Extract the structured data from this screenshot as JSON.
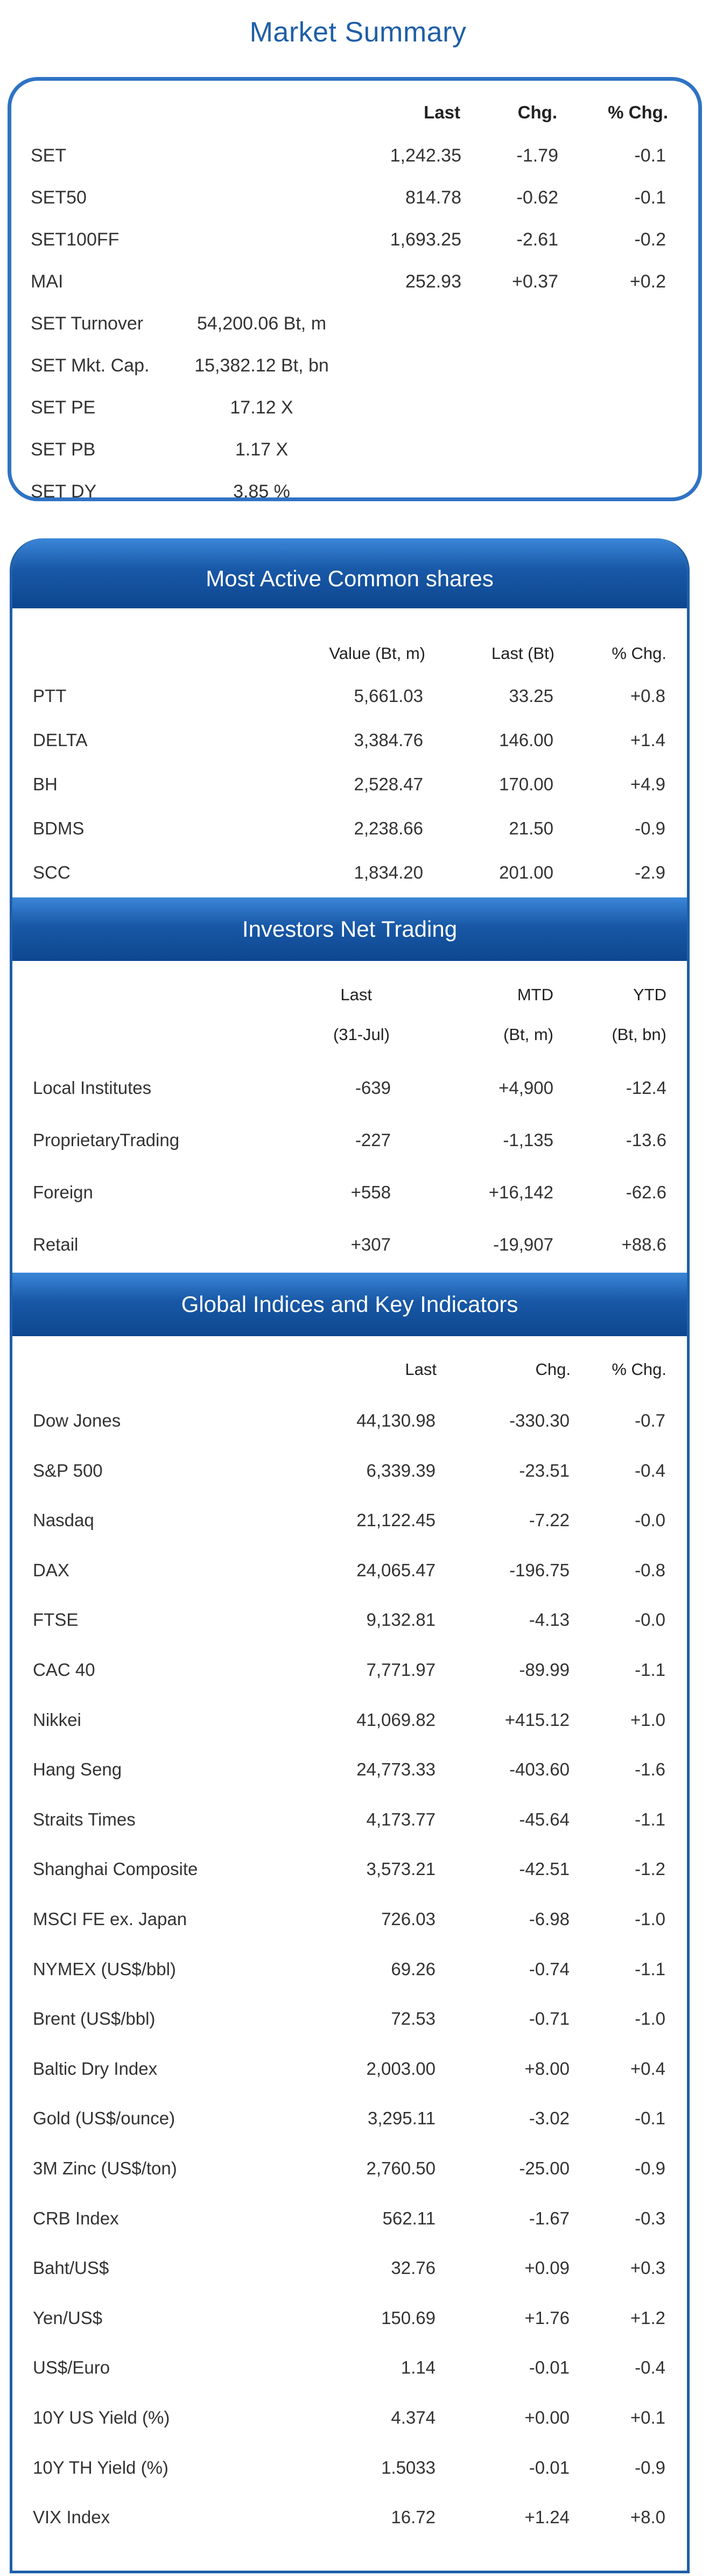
{
  "market_summary": {
    "title": "Market Summary",
    "headers": {
      "last": "Last",
      "chg": "Chg.",
      "pct": "% Chg."
    },
    "rows": [
      {
        "name": "SET",
        "last": "1,242.35",
        "chg": "-1.79",
        "pct": "-0.1"
      },
      {
        "name": "SET50",
        "last": "814.78",
        "chg": "-0.62",
        "pct": "-0.1"
      },
      {
        "name": "SET100FF",
        "last": "1,693.25",
        "chg": "-2.61",
        "pct": "-0.2"
      },
      {
        "name": "MAI",
        "last": "252.93",
        "chg": "+0.37",
        "pct": "+0.2"
      }
    ],
    "extra_rows": [
      {
        "name": "SET  Turnover",
        "value": "54,200.06 Bt, m"
      },
      {
        "name": "SET  Mkt. Cap.",
        "value": "15,382.12 Bt, bn"
      },
      {
        "name": "SET  PE",
        "value": "17.12 X"
      },
      {
        "name": "SET  PB",
        "value": "1.17 X"
      },
      {
        "name": "SET  DY",
        "value": "3.85 %"
      }
    ]
  },
  "most_active": {
    "title": "Most Active Common shares",
    "headers": {
      "value": "Value (Bt, m)",
      "last": "Last (Bt)",
      "pct": "% Chg."
    },
    "rows": [
      {
        "name": "PTT",
        "value": "5,661.03",
        "last": "33.25",
        "pct": "+0.8"
      },
      {
        "name": "DELTA",
        "value": "3,384.76",
        "last": "146.00",
        "pct": "+1.4"
      },
      {
        "name": "BH",
        "value": "2,528.47",
        "last": "170.00",
        "pct": "+4.9"
      },
      {
        "name": "BDMS",
        "value": "2,238.66",
        "last": "21.50",
        "pct": "-0.9"
      },
      {
        "name": "SCC",
        "value": "1,834.20",
        "last": "201.00",
        "pct": "-2.9"
      }
    ]
  },
  "investors": {
    "title": "Investors Net Trading",
    "headers": {
      "last": "Last",
      "mtd": "MTD",
      "ytd": "YTD"
    },
    "subheaders": {
      "last": "(31-Jul)",
      "mtd": "(Bt, m)",
      "ytd": "(Bt, bn)"
    },
    "rows": [
      {
        "name": "Local Institutes",
        "last": "-639",
        "mtd": "+4,900",
        "ytd": "-12.4"
      },
      {
        "name": "ProprietaryTrading",
        "last": "-227",
        "mtd": "-1,135",
        "ytd": "-13.6"
      },
      {
        "name": "Foreign",
        "last": "+558",
        "mtd": "+16,142",
        "ytd": "-62.6"
      },
      {
        "name": "Retail",
        "last": "+307",
        "mtd": "-19,907",
        "ytd": "+88.6"
      }
    ]
  },
  "global": {
    "title": "Global Indices and Key Indicators",
    "headers": {
      "last": "Last",
      "chg": "Chg.",
      "pct": "% Chg."
    },
    "rows": [
      {
        "name": "Dow Jones",
        "last": "44,130.98",
        "chg": "-330.30",
        "pct": "-0.7"
      },
      {
        "name": "S&P  500",
        "last": "6,339.39",
        "chg": "-23.51",
        "pct": "-0.4"
      },
      {
        "name": "Nasdaq",
        "last": "21,122.45",
        "chg": "-7.22",
        "pct": "-0.0"
      },
      {
        "name": "DAX",
        "last": "24,065.47",
        "chg": "-196.75",
        "pct": "-0.8"
      },
      {
        "name": "FTSE",
        "last": "9,132.81",
        "chg": "-4.13",
        "pct": "-0.0"
      },
      {
        "name": "CAC  40",
        "last": "7,771.97",
        "chg": "-89.99",
        "pct": "-1.1"
      },
      {
        "name": "Nikkei",
        "last": "41,069.82",
        "chg": "+415.12",
        "pct": "+1.0"
      },
      {
        "name": "Hang Seng",
        "last": "24,773.33",
        "chg": "-403.60",
        "pct": "-1.6"
      },
      {
        "name": "Straits Times",
        "last": "4,173.77",
        "chg": "-45.64",
        "pct": "-1.1"
      },
      {
        "name": "Shanghai Composite",
        "last": "3,573.21",
        "chg": "-42.51",
        "pct": "-1.2"
      },
      {
        "name": "MSCI FE ex. Japan",
        "last": "726.03",
        "chg": "-6.98",
        "pct": "-1.0"
      },
      {
        "name": "NYMEX (US$/bbl)",
        "last": "69.26",
        "chg": "-0.74",
        "pct": "-1.1"
      },
      {
        "name": "Brent (US$/bbl)",
        "last": "72.53",
        "chg": "-0.71",
        "pct": "-1.0"
      },
      {
        "name": "Baltic Dry Index",
        "last": "2,003.00",
        "chg": "+8.00",
        "pct": "+0.4"
      },
      {
        "name": "Gold (US$/ounce)",
        "last": "3,295.11",
        "chg": "-3.02",
        "pct": "-0.1"
      },
      {
        "name": "3M Zinc (US$/ton)",
        "last": "2,760.50",
        "chg": "-25.00",
        "pct": "-0.9"
      },
      {
        "name": "CRB Index",
        "last": "562.11",
        "chg": "-1.67",
        "pct": "-0.3"
      },
      {
        "name": "Baht/US$",
        "last": "32.76",
        "chg": "+0.09",
        "pct": "+0.3"
      },
      {
        "name": "Yen/US$",
        "last": "150.69",
        "chg": "+1.76",
        "pct": "+1.2"
      },
      {
        "name": "US$/Euro",
        "last": "1.14",
        "chg": "-0.01",
        "pct": "-0.4"
      },
      {
        "name": "10Y US Yield (%)",
        "last": "4.374",
        "chg": "+0.00",
        "pct": "+0.1"
      },
      {
        "name": "10Y TH Yield (%)",
        "last": "1.5033",
        "chg": "-0.01",
        "pct": "-0.9"
      },
      {
        "name": "VIX Index",
        "last": "16.72",
        "chg": "+1.24",
        "pct": "+8.0"
      }
    ]
  },
  "colors": {
    "accent": "#1f5fa6",
    "band": "#1858a6",
    "date_red": "#e00000"
  }
}
